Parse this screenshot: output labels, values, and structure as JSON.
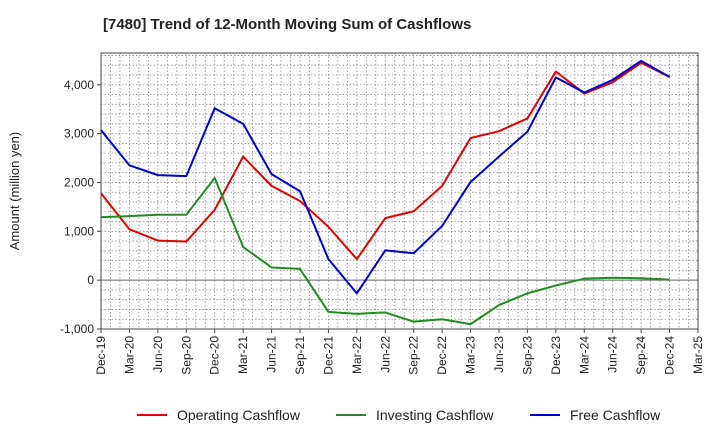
{
  "chart_data": {
    "type": "line",
    "title": "[7480]  Trend of 12-Month Moving Sum of Cashflows",
    "xlabel": "",
    "ylabel": "Amount (million yen)",
    "x": [
      "Dec-19",
      "Mar-20",
      "Jun-20",
      "Sep-20",
      "Dec-20",
      "Mar-21",
      "Jun-21",
      "Sep-21",
      "Dec-21",
      "Mar-22",
      "Jun-22",
      "Sep-22",
      "Dec-22",
      "Mar-23",
      "Jun-23",
      "Sep-23",
      "Dec-23",
      "Mar-24",
      "Jun-24",
      "Sep-24",
      "Dec-24",
      "Mar-25"
    ],
    "ylim": [
      -1000,
      4650
    ],
    "yticks": [
      -1000,
      0,
      1000,
      2000,
      3000,
      4000
    ],
    "ytick_labels": [
      "-1,000",
      "0",
      "1,000",
      "2,000",
      "3,000",
      "4,000"
    ],
    "grid": true,
    "legend_position": "bottom",
    "series": [
      {
        "name": "Operating Cashflow",
        "color": "#dd0000",
        "values": [
          1780,
          1040,
          810,
          790,
          1440,
          2530,
          1930,
          1620,
          1090,
          430,
          1270,
          1410,
          1930,
          2910,
          3050,
          3310,
          4270,
          3820,
          4050,
          4450,
          4160,
          null
        ]
      },
      {
        "name": "Investing Cashflow",
        "color": "#228b22",
        "values": [
          1290,
          1310,
          1340,
          1340,
          2090,
          680,
          260,
          230,
          -650,
          -690,
          -660,
          -850,
          -800,
          -900,
          -510,
          -270,
          -110,
          30,
          50,
          40,
          10,
          null
        ]
      },
      {
        "name": "Free Cashflow",
        "color": "#0000cc",
        "values": [
          3070,
          2350,
          2150,
          2130,
          3520,
          3200,
          2170,
          1820,
          430,
          -270,
          610,
          550,
          1110,
          2010,
          2530,
          3040,
          4150,
          3840,
          4100,
          4490,
          4160,
          null
        ]
      }
    ]
  }
}
